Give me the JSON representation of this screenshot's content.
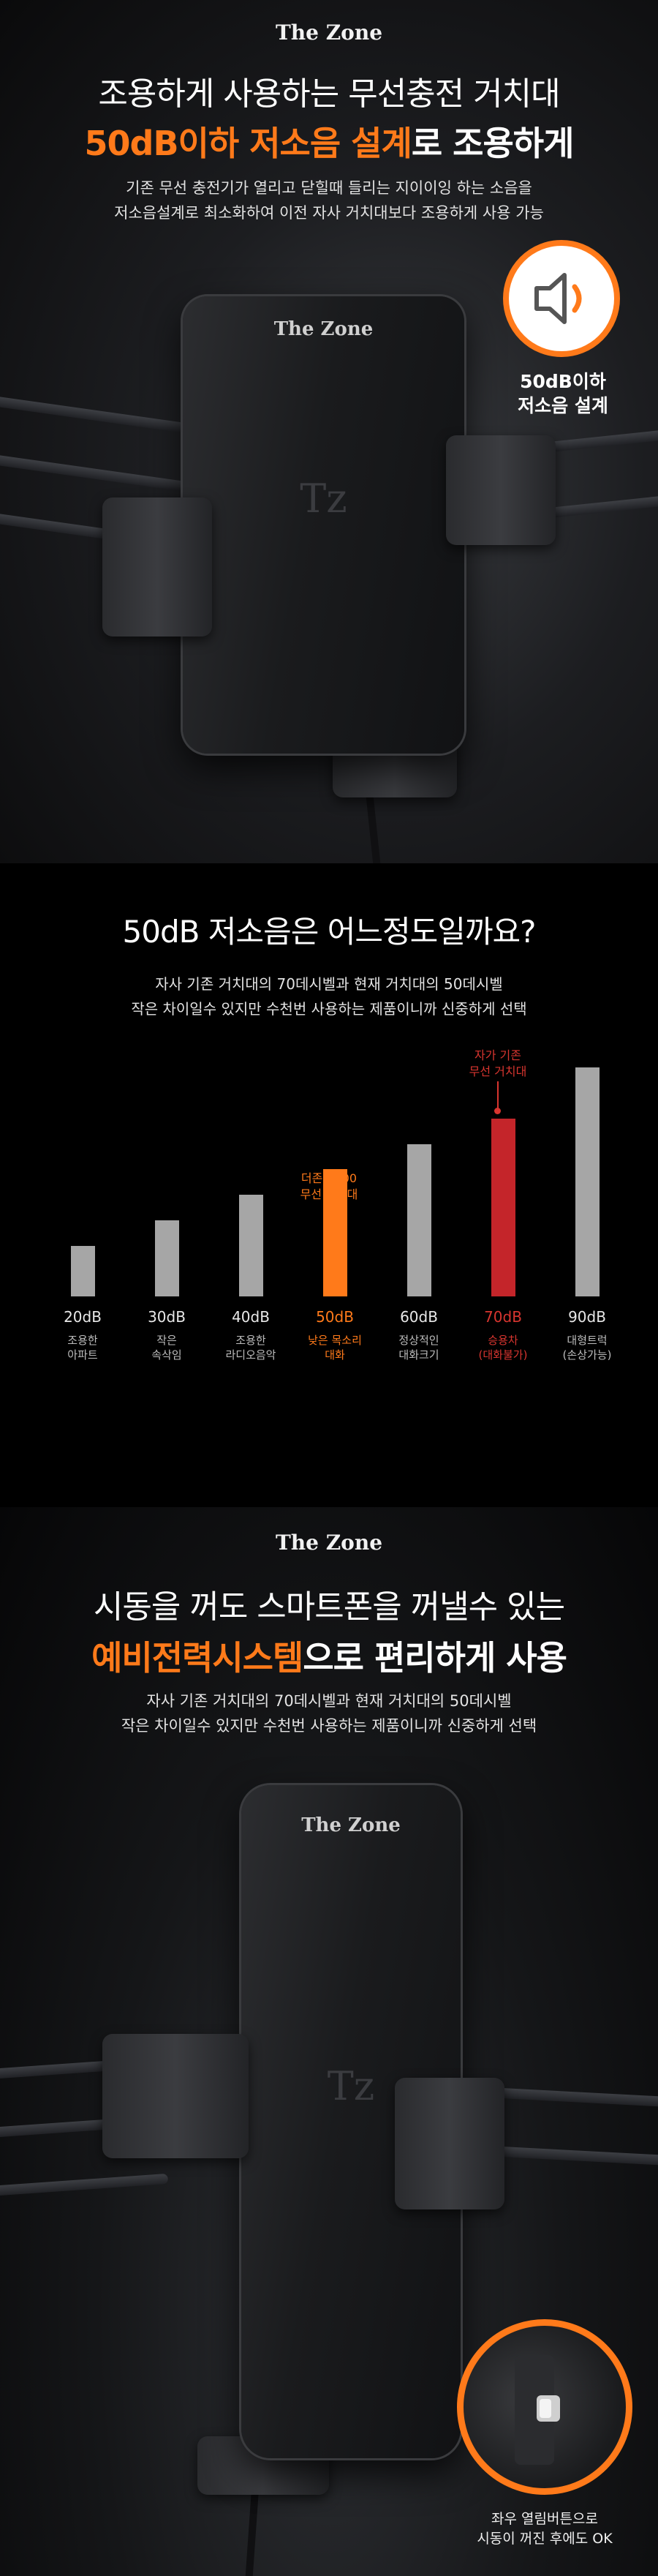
{
  "section1": {
    "brand": "The Zone",
    "headline_line1": "조용하게 사용하는 무선충전 거치대",
    "headline_highlight": "50dB이하 저소음 설계",
    "headline_rest": "로 조용하게",
    "sub_line1": "기존 무선 충전기가 열리고 닫힐때 들리는 지이이잉 하는 소음을",
    "sub_line2": "저소음설계로 최소화하여 이전 자사 거치대보다 조용하게 사용 가능",
    "phone_brand": "The Zone",
    "phone_logo": "Tz",
    "badge_icon": "speaker-icon",
    "badge_line1": "50dB이하",
    "badge_line2": "저소음 설계"
  },
  "section2": {
    "title": "50dB 저소음은 어느정도일까요?",
    "sub_line1": "자사 기존 거치대의 70데시벨과 현재 거치대의 50데시벨",
    "sub_line2": "작은 차이일수 있지만 수천번 사용하는 제품이니까 신중하게 선택",
    "annotation_c100_line1": "더존 C100",
    "annotation_c100_line2": "무선 거치대",
    "annotation_old_line1": "자가 기존",
    "annotation_old_line2": "무선 거치대"
  },
  "chart_data": {
    "type": "bar",
    "categories": [
      "20dB",
      "30dB",
      "40dB",
      "50dB",
      "60dB",
      "70dB",
      "90dB"
    ],
    "values": [
      20,
      30,
      40,
      50,
      60,
      70,
      90
    ],
    "descriptions": [
      [
        "조용한",
        "아파트"
      ],
      [
        "작은",
        "속삭임"
      ],
      [
        "조용한",
        "라디오음악"
      ],
      [
        "낮은 목소리",
        "대화"
      ],
      [
        "정상적인",
        "대화크기"
      ],
      [
        "승용차",
        "(대화불가)"
      ],
      [
        "대형트럭",
        "(손상가능)"
      ]
    ],
    "colors": [
      "#a6a6a6",
      "#a6a6a6",
      "#a6a6a6",
      "#ff7a1a",
      "#a6a6a6",
      "#c4252a",
      "#a6a6a6"
    ],
    "label_colors": [
      "#e8e8e8",
      "#e8e8e8",
      "#e8e8e8",
      "#ff7a1a",
      "#e8e8e8",
      "#d8352f",
      "#e8e8e8"
    ],
    "ylim": [
      0,
      95
    ]
  },
  "section3": {
    "brand": "The Zone",
    "headline_line1": "시동을 꺼도 스마트폰을 꺼낼수 있는",
    "headline_highlight": "예비전력시스템",
    "headline_rest": "으로 편리하게 사용",
    "sub_line1": "자사 기존 거치대의 70데시벨과 현재 거치대의 50데시벨",
    "sub_line2": "작은 차이일수 있지만 수천번 사용하는 제품이니까 신중하게 선택",
    "phone_brand": "The Zone",
    "phone_logo": "Tz",
    "magnifier_line1": "좌우 열림버튼으로",
    "magnifier_line2": "시동이 꺼진 후에도 OK"
  }
}
